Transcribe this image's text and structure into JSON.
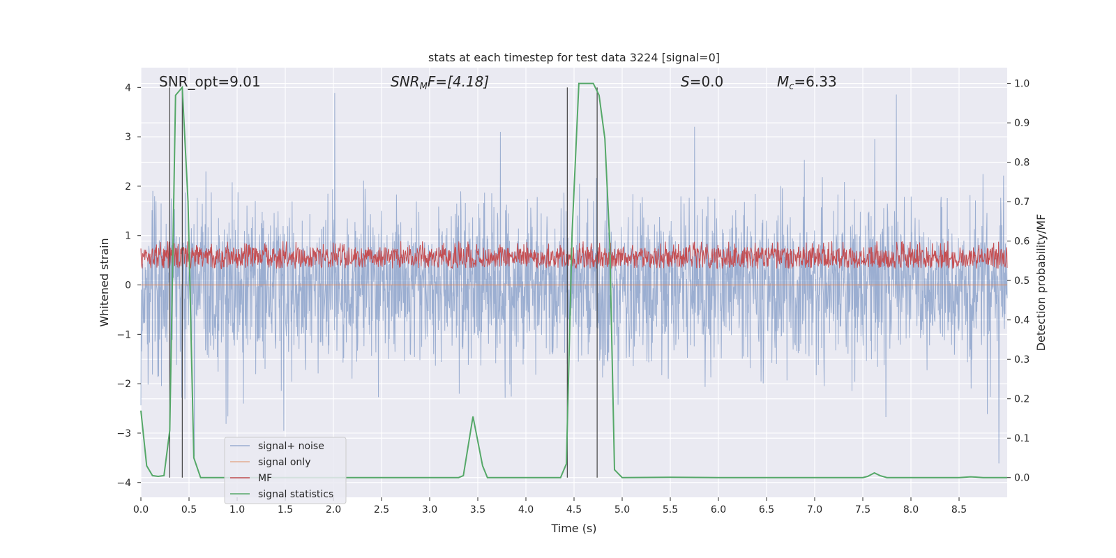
{
  "chart_data": {
    "type": "line",
    "title": "stats at each timestep for test data 3224 [signal=0]",
    "xlabel": "Time (s)",
    "ylabel": "Whitened strain",
    "ylabel_right": "Detection probability/MF",
    "xlim": [
      0.0,
      9.0
    ],
    "ylim": [
      -4.3,
      4.4
    ],
    "ylim_right": [
      -0.05,
      1.04
    ],
    "x_ticks": [
      "0.0",
      "0.5",
      "1.0",
      "1.5",
      "2.0",
      "2.5",
      "3.0",
      "3.5",
      "4.0",
      "4.5",
      "5.0",
      "5.5",
      "6.0",
      "6.5",
      "7.0",
      "7.5",
      "8.0",
      "8.5"
    ],
    "y_ticks_left": [
      "4",
      "3",
      "2",
      "1",
      "0",
      "−1",
      "−2",
      "−3",
      "−4"
    ],
    "y_ticks_right": [
      "1.0",
      "0.9",
      "0.8",
      "0.7",
      "0.6",
      "0.5",
      "0.4",
      "0.3",
      "0.2",
      "0.1",
      "0.0"
    ],
    "grid": true,
    "legend_position": "lower-left",
    "annotations": {
      "snr_opt": "SNR_opt=9.01",
      "snr_mf_main": "SNR",
      "snr_mf_sub": "M",
      "snr_mf_rest": "F=[4.18]",
      "s_main": "S",
      "s_rest": "=0.0",
      "mc_main": "M",
      "mc_sub": "c",
      "mc_rest": "=6.33"
    },
    "vertical_markers": [
      0.3,
      0.43,
      4.43,
      4.74
    ],
    "series": [
      {
        "name": "signal+ noise",
        "color": "#4c72b0",
        "kind": "noise",
        "amplitude_range": [
          -3.9,
          4.0
        ]
      },
      {
        "name": "signal only",
        "color": "#dd8452",
        "kind": "flat",
        "values": [
          0.0
        ]
      },
      {
        "name": "MF",
        "color": "#c44e52",
        "kind": "band",
        "range_right_axis": [
          0.51,
          0.6
        ]
      },
      {
        "name": "signal statistics",
        "color": "#55a868",
        "axis": "right",
        "x": [
          0.0,
          0.06,
          0.12,
          0.18,
          0.24,
          0.3,
          0.36,
          0.43,
          0.49,
          0.55,
          0.62,
          1.0,
          2.0,
          3.0,
          3.3,
          3.35,
          3.45,
          3.55,
          3.6,
          4.0,
          4.36,
          4.42,
          4.48,
          4.55,
          4.7,
          4.76,
          4.82,
          4.87,
          4.92,
          5.0,
          5.5,
          6.0,
          7.0,
          7.5,
          7.55,
          7.62,
          7.68,
          7.75,
          8.0,
          8.5,
          8.62,
          8.75,
          9.0
        ],
        "y": [
          0.17,
          0.03,
          0.005,
          0.003,
          0.005,
          0.12,
          0.97,
          0.99,
          0.7,
          0.05,
          0.0,
          0.0,
          0.0,
          0.0,
          0.0,
          0.005,
          0.155,
          0.03,
          0.0,
          0.0,
          0.0,
          0.035,
          0.62,
          1.0,
          1.0,
          0.97,
          0.86,
          0.6,
          0.02,
          0.0,
          0.001,
          0.0,
          0.0,
          0.0,
          0.003,
          0.012,
          0.005,
          0.0,
          0.0,
          0.0,
          0.002,
          0.0,
          0.0
        ]
      }
    ]
  }
}
